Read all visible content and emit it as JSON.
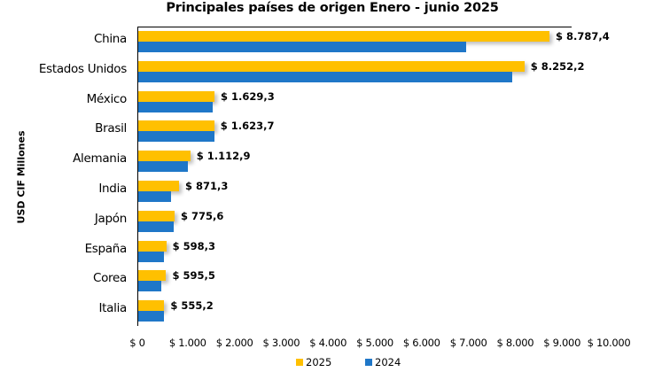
{
  "chart_data": {
    "type": "bar",
    "orientation": "horizontal",
    "title": "Principales países de origen Enero - junio 2025",
    "xlabel": "",
    "ylabel": "USD CIF Millones",
    "xlim": [
      0,
      10000
    ],
    "x_ticks": [
      "$ 0",
      "$ 1.000",
      "$ 2.000",
      "$ 3.000",
      "$ 4.000",
      "$ 5.000",
      "$ 6.000",
      "$ 7.000",
      "$ 8.000",
      "$ 9.000",
      "$ 10.000"
    ],
    "grid": false,
    "legend_position": "bottom",
    "categories": [
      "China",
      "Estados Unidos",
      "México",
      "Brasil",
      "Alemania",
      "India",
      "Japón",
      "España",
      "Corea",
      "Italia"
    ],
    "series": [
      {
        "name": "2025",
        "color": "#FFC000",
        "values": [
          8787.4,
          8252.2,
          1629.3,
          1623.7,
          1112.9,
          871.3,
          775.6,
          598.3,
          595.5,
          555.2
        ],
        "labels": [
          "$ 8.787,4",
          "$ 8.252,2",
          "$ 1.629,3",
          "$ 1.623,7",
          "$ 1.112,9",
          "$ 871,3",
          "$ 775,6",
          "$ 598,3",
          "$ 595,5",
          "$ 555,2"
        ]
      },
      {
        "name": "2024",
        "color": "#1F77C8",
        "values": [
          7000,
          8000,
          1600,
          1630,
          1060,
          700,
          760,
          550,
          490,
          550
        ]
      }
    ]
  }
}
